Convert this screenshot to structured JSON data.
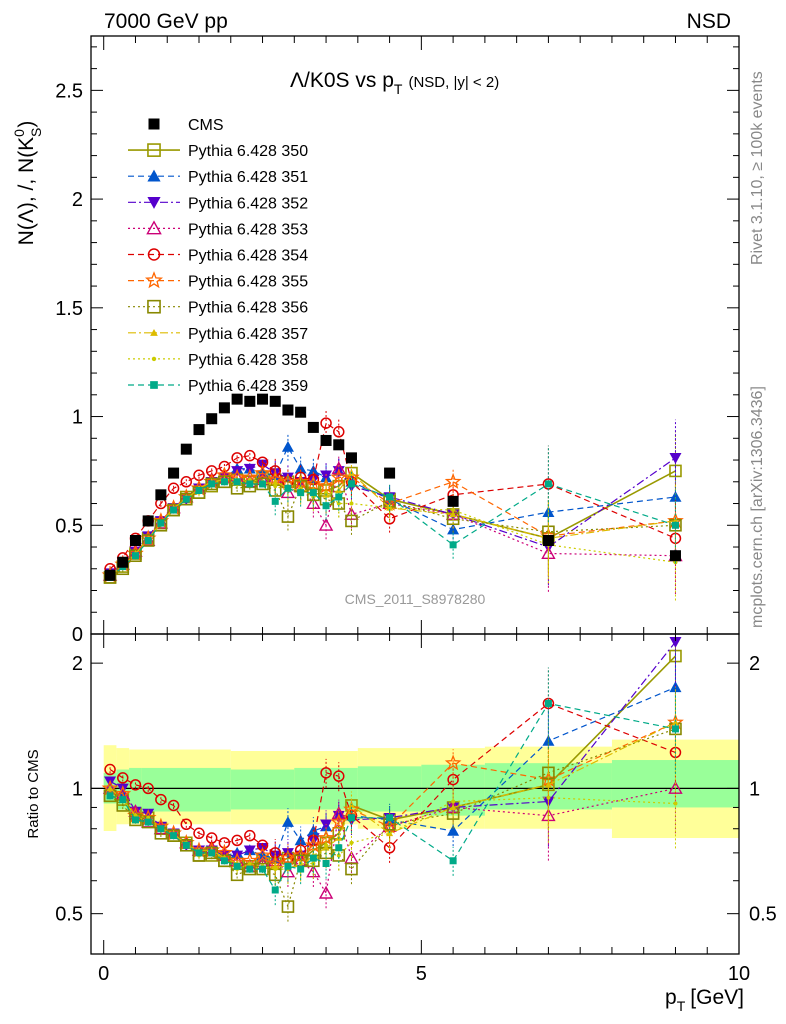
{
  "header": {
    "left": "7000 GeV pp",
    "right": "NSD"
  },
  "side_labels": {
    "top": "Rivet 3.1.10, ≥ 100k events",
    "bottom": "mcplots.cern.ch [arXiv:1306.3436]"
  },
  "watermark": "CMS_2011_S8978280",
  "chart_data": [
    {
      "type": "scatter",
      "panel": "main",
      "title": "Λ/K0S vs p",
      "title_sub": "T",
      "title_note": "(NSD, |y| < 2)",
      "ylabel": "N(Λ), /, N(K",
      "ylabel_sub": "S",
      "ylabel_sup": "0",
      "ylabel_end": ")",
      "xlim": [
        -0.2,
        10.0
      ],
      "ylim": [
        0.0,
        2.75
      ],
      "yticks": [
        0.5,
        1.0,
        1.5,
        2.0,
        2.5
      ],
      "ytick_labels": [
        "0.5",
        "1",
        "1.5",
        "2",
        "2.5"
      ],
      "bottom_tick_label": "0",
      "x": [
        0.1,
        0.3,
        0.5,
        0.7,
        0.9,
        1.1,
        1.3,
        1.5,
        1.7,
        1.9,
        2.1,
        2.3,
        2.5,
        2.7,
        2.9,
        3.1,
        3.3,
        3.5,
        3.7,
        3.9,
        4.5,
        5.5,
        7.0,
        9.0
      ],
      "legend_position": "top-left",
      "series": [
        {
          "name": "CMS",
          "color": "#000000",
          "marker": "square-filled",
          "dash": "none",
          "values": [
            0.27,
            0.33,
            0.43,
            0.52,
            0.64,
            0.74,
            0.85,
            0.94,
            0.99,
            1.04,
            1.08,
            1.07,
            1.08,
            1.07,
            1.03,
            1.02,
            0.95,
            0.89,
            0.87,
            0.81,
            0.74,
            0.61,
            0.43,
            0.36
          ]
        },
        {
          "name": "Pythia 6.428 350",
          "color": "#999900",
          "marker": "square-open",
          "dash": "solid",
          "values": [
            0.26,
            0.31,
            0.37,
            0.44,
            0.51,
            0.57,
            0.63,
            0.65,
            0.68,
            0.7,
            0.71,
            0.7,
            0.72,
            0.71,
            0.7,
            0.68,
            0.67,
            0.66,
            0.68,
            0.74,
            0.62,
            0.55,
            0.44,
            0.75
          ]
        },
        {
          "name": "Pythia 6.428 351",
          "color": "#0055cc",
          "marker": "triangle-up-filled",
          "dash": "dashed",
          "values": [
            0.27,
            0.32,
            0.37,
            0.44,
            0.52,
            0.58,
            0.63,
            0.67,
            0.7,
            0.72,
            0.76,
            0.76,
            0.74,
            0.73,
            0.86,
            0.76,
            0.75,
            0.72,
            0.75,
            0.7,
            0.62,
            0.48,
            0.56,
            0.63
          ]
        },
        {
          "name": "Pythia 6.428 352",
          "color": "#5500cc",
          "marker": "triangle-down-filled",
          "dash": "dashdot",
          "values": [
            0.28,
            0.33,
            0.38,
            0.45,
            0.52,
            0.58,
            0.62,
            0.67,
            0.7,
            0.72,
            0.75,
            0.76,
            0.78,
            0.74,
            0.72,
            0.7,
            0.71,
            0.73,
            0.75,
            0.68,
            0.63,
            0.55,
            0.4,
            0.81
          ]
        },
        {
          "name": "Pythia 6.428 353",
          "color": "#cc0077",
          "marker": "triangle-up-open",
          "dash": "dotted",
          "values": [
            0.27,
            0.32,
            0.38,
            0.43,
            0.51,
            0.58,
            0.63,
            0.67,
            0.71,
            0.72,
            0.72,
            0.7,
            0.71,
            0.72,
            0.65,
            0.68,
            0.6,
            0.5,
            0.76,
            0.55,
            0.6,
            0.55,
            0.37,
            0.36
          ]
        },
        {
          "name": "Pythia 6.428 354",
          "color": "#dd0000",
          "marker": "circle-open",
          "dash": "dashed",
          "values": [
            0.3,
            0.35,
            0.44,
            0.52,
            0.6,
            0.67,
            0.7,
            0.73,
            0.75,
            0.77,
            0.81,
            0.82,
            0.79,
            0.75,
            0.7,
            0.72,
            0.71,
            0.97,
            0.93,
            0.7,
            0.53,
            0.64,
            0.69,
            0.44
          ]
        },
        {
          "name": "Pythia 6.428 355",
          "color": "#ff6600",
          "marker": "star-open",
          "dash": "dashed",
          "values": [
            0.27,
            0.32,
            0.37,
            0.44,
            0.52,
            0.58,
            0.63,
            0.67,
            0.7,
            0.73,
            0.72,
            0.72,
            0.74,
            0.71,
            0.7,
            0.7,
            0.69,
            0.68,
            0.72,
            0.72,
            0.6,
            0.7,
            0.45,
            0.52
          ]
        },
        {
          "name": "Pythia 6.428 356",
          "color": "#888800",
          "marker": "square-open",
          "dash": "dotted",
          "values": [
            0.26,
            0.3,
            0.36,
            0.43,
            0.5,
            0.57,
            0.62,
            0.65,
            0.69,
            0.7,
            0.67,
            0.68,
            0.69,
            0.66,
            0.54,
            0.68,
            0.64,
            0.62,
            0.6,
            0.52,
            0.61,
            0.53,
            0.47,
            0.5
          ]
        },
        {
          "name": "Pythia 6.428 357",
          "color": "#ddbb00",
          "marker": "triangle-up-small",
          "dash": "dashdot",
          "values": [
            0.27,
            0.31,
            0.37,
            0.43,
            0.51,
            0.58,
            0.62,
            0.67,
            0.7,
            0.71,
            0.71,
            0.7,
            0.69,
            0.7,
            0.67,
            0.66,
            0.66,
            0.64,
            0.66,
            0.74,
            0.58,
            0.55,
            0.44,
            0.52
          ]
        },
        {
          "name": "Pythia 6.428 358",
          "color": "#cccc00",
          "marker": "dot",
          "dash": "dotted",
          "values": [
            0.26,
            0.31,
            0.37,
            0.44,
            0.51,
            0.57,
            0.63,
            0.65,
            0.69,
            0.71,
            0.69,
            0.71,
            0.7,
            0.68,
            0.66,
            0.67,
            0.63,
            0.65,
            0.6,
            0.6,
            0.58,
            0.57,
            0.41,
            0.33
          ]
        },
        {
          "name": "Pythia 6.428 359",
          "color": "#00aa88",
          "marker": "square-small",
          "dash": "dashed",
          "values": [
            0.26,
            0.31,
            0.36,
            0.43,
            0.51,
            0.57,
            0.62,
            0.66,
            0.69,
            0.7,
            0.7,
            0.69,
            0.69,
            0.61,
            0.67,
            0.65,
            0.65,
            0.59,
            0.63,
            0.69,
            0.63,
            0.41,
            0.69,
            0.5
          ]
        }
      ]
    },
    {
      "type": "scatter",
      "panel": "ratio",
      "ylabel": "Ratio to CMS",
      "xlabel": "p",
      "xlabel_sub": "T",
      "xlabel_unit": "[GeV]",
      "xlim": [
        -0.2,
        10.0
      ],
      "ylim": [
        0.4,
        2.35
      ],
      "ylog": true,
      "xticks": [
        0,
        5,
        10
      ],
      "xtick_labels": [
        "0",
        "5",
        "10"
      ],
      "yticks": [
        0.5,
        1,
        2
      ],
      "ytick_labels": [
        "0.5",
        "1",
        "2"
      ],
      "reference_line": 1.0,
      "uncertainty_bands": {
        "inner_color": "#99ff99",
        "outer_color": "#ffff99",
        "inner": [
          [
            0.0,
            0.2,
            0.92,
            1.09
          ],
          [
            0.2,
            0.4,
            0.89,
            1.11
          ],
          [
            0.4,
            0.6,
            0.88,
            1.12
          ],
          [
            0.6,
            2.0,
            0.88,
            1.12
          ],
          [
            2.0,
            3.0,
            0.89,
            1.11
          ],
          [
            3.0,
            4.0,
            0.89,
            1.12
          ],
          [
            4.0,
            5.0,
            0.88,
            1.13
          ],
          [
            5.0,
            6.0,
            0.86,
            1.14
          ],
          [
            6.0,
            8.0,
            0.89,
            1.15
          ],
          [
            8.0,
            10.0,
            0.9,
            1.17
          ]
        ],
        "outer": [
          [
            0.0,
            0.2,
            0.79,
            1.27
          ],
          [
            0.2,
            0.4,
            0.82,
            1.25
          ],
          [
            0.4,
            2.0,
            0.82,
            1.24
          ],
          [
            2.0,
            4.0,
            0.82,
            1.23
          ],
          [
            4.0,
            6.0,
            0.8,
            1.25
          ],
          [
            6.0,
            8.0,
            0.8,
            1.26
          ],
          [
            8.0,
            10.0,
            0.76,
            1.31
          ]
        ]
      },
      "series": [
        {
          "name": "Pythia 6.428 350",
          "values": [
            0.96,
            0.94,
            0.87,
            0.85,
            0.8,
            0.77,
            0.74,
            0.69,
            0.69,
            0.67,
            0.66,
            0.65,
            0.67,
            0.66,
            0.68,
            0.67,
            0.71,
            0.74,
            0.78,
            0.91,
            0.84,
            0.9,
            1.02,
            2.08
          ]
        },
        {
          "name": "Pythia 6.428 351",
          "values": [
            1.0,
            0.97,
            0.86,
            0.85,
            0.81,
            0.78,
            0.74,
            0.71,
            0.71,
            0.69,
            0.7,
            0.71,
            0.69,
            0.68,
            0.83,
            0.75,
            0.79,
            0.81,
            0.86,
            0.86,
            0.84,
            0.79,
            1.3,
            1.75
          ]
        },
        {
          "name": "Pythia 6.428 352",
          "values": [
            1.04,
            1.0,
            0.88,
            0.87,
            0.81,
            0.78,
            0.73,
            0.71,
            0.71,
            0.69,
            0.69,
            0.71,
            0.72,
            0.69,
            0.7,
            0.69,
            0.75,
            0.82,
            0.86,
            0.84,
            0.85,
            0.9,
            0.93,
            2.25
          ]
        },
        {
          "name": "Pythia 6.428 353",
          "values": [
            1.0,
            0.97,
            0.88,
            0.83,
            0.8,
            0.78,
            0.74,
            0.71,
            0.72,
            0.69,
            0.67,
            0.65,
            0.66,
            0.67,
            0.63,
            0.67,
            0.63,
            0.56,
            0.87,
            0.68,
            0.81,
            0.9,
            0.86,
            1.0
          ]
        },
        {
          "name": "Pythia 6.428 354",
          "values": [
            1.11,
            1.06,
            1.02,
            1.0,
            0.94,
            0.91,
            0.82,
            0.78,
            0.76,
            0.74,
            0.75,
            0.77,
            0.73,
            0.7,
            0.68,
            0.71,
            0.75,
            1.09,
            1.07,
            0.86,
            0.72,
            1.05,
            1.6,
            1.22
          ]
        },
        {
          "name": "Pythia 6.428 355",
          "values": [
            1.0,
            0.97,
            0.86,
            0.85,
            0.81,
            0.78,
            0.74,
            0.71,
            0.71,
            0.7,
            0.67,
            0.67,
            0.69,
            0.66,
            0.68,
            0.69,
            0.73,
            0.76,
            0.83,
            0.89,
            0.81,
            1.15,
            1.05,
            1.44
          ]
        },
        {
          "name": "Pythia 6.428 356",
          "values": [
            0.96,
            0.91,
            0.84,
            0.83,
            0.78,
            0.77,
            0.73,
            0.69,
            0.7,
            0.67,
            0.62,
            0.64,
            0.64,
            0.62,
            0.52,
            0.67,
            0.67,
            0.7,
            0.69,
            0.64,
            0.82,
            0.87,
            1.09,
            1.39
          ]
        },
        {
          "name": "Pythia 6.428 357",
          "values": [
            1.0,
            0.94,
            0.86,
            0.83,
            0.8,
            0.78,
            0.73,
            0.71,
            0.71,
            0.68,
            0.66,
            0.65,
            0.64,
            0.65,
            0.65,
            0.65,
            0.69,
            0.72,
            0.76,
            0.91,
            0.78,
            0.9,
            1.02,
            1.44
          ]
        },
        {
          "name": "Pythia 6.428 358",
          "values": [
            0.96,
            0.94,
            0.86,
            0.85,
            0.8,
            0.77,
            0.74,
            0.69,
            0.7,
            0.68,
            0.64,
            0.66,
            0.65,
            0.64,
            0.64,
            0.66,
            0.66,
            0.73,
            0.69,
            0.74,
            0.78,
            0.93,
            0.95,
            0.92
          ]
        },
        {
          "name": "Pythia 6.428 359",
          "values": [
            0.96,
            0.94,
            0.84,
            0.83,
            0.8,
            0.77,
            0.73,
            0.7,
            0.7,
            0.67,
            0.65,
            0.64,
            0.64,
            0.57,
            0.65,
            0.64,
            0.68,
            0.66,
            0.72,
            0.85,
            0.85,
            0.67,
            1.6,
            1.39
          ]
        }
      ]
    }
  ]
}
